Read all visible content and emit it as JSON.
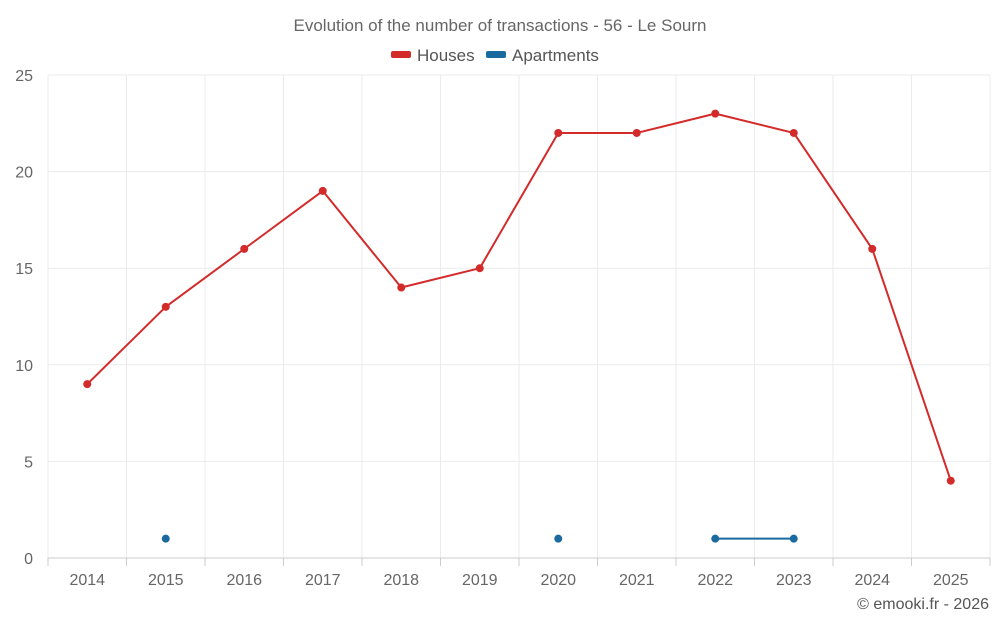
{
  "chart_data": {
    "type": "line",
    "title": "Evolution of the number of transactions - 56 - Le Sourn",
    "categories": [
      "2014",
      "2015",
      "2016",
      "2017",
      "2018",
      "2019",
      "2020",
      "2021",
      "2022",
      "2023",
      "2024",
      "2025"
    ],
    "ylim": [
      0,
      25
    ],
    "yticks": [
      0,
      5,
      10,
      15,
      20,
      25
    ],
    "grid": true,
    "legend_position": "top-center",
    "xlabel": "",
    "ylabel": "",
    "series": [
      {
        "name": "Houses",
        "color": "#d32a2a",
        "values": [
          9,
          13,
          16,
          19,
          14,
          15,
          22,
          22,
          23,
          22,
          16,
          4
        ]
      },
      {
        "name": "Apartments",
        "color": "#1a6aa0",
        "values": [
          null,
          1,
          null,
          null,
          null,
          null,
          1,
          null,
          1,
          1,
          null,
          null
        ]
      }
    ]
  },
  "credit": "© emooki.fr - 2026"
}
